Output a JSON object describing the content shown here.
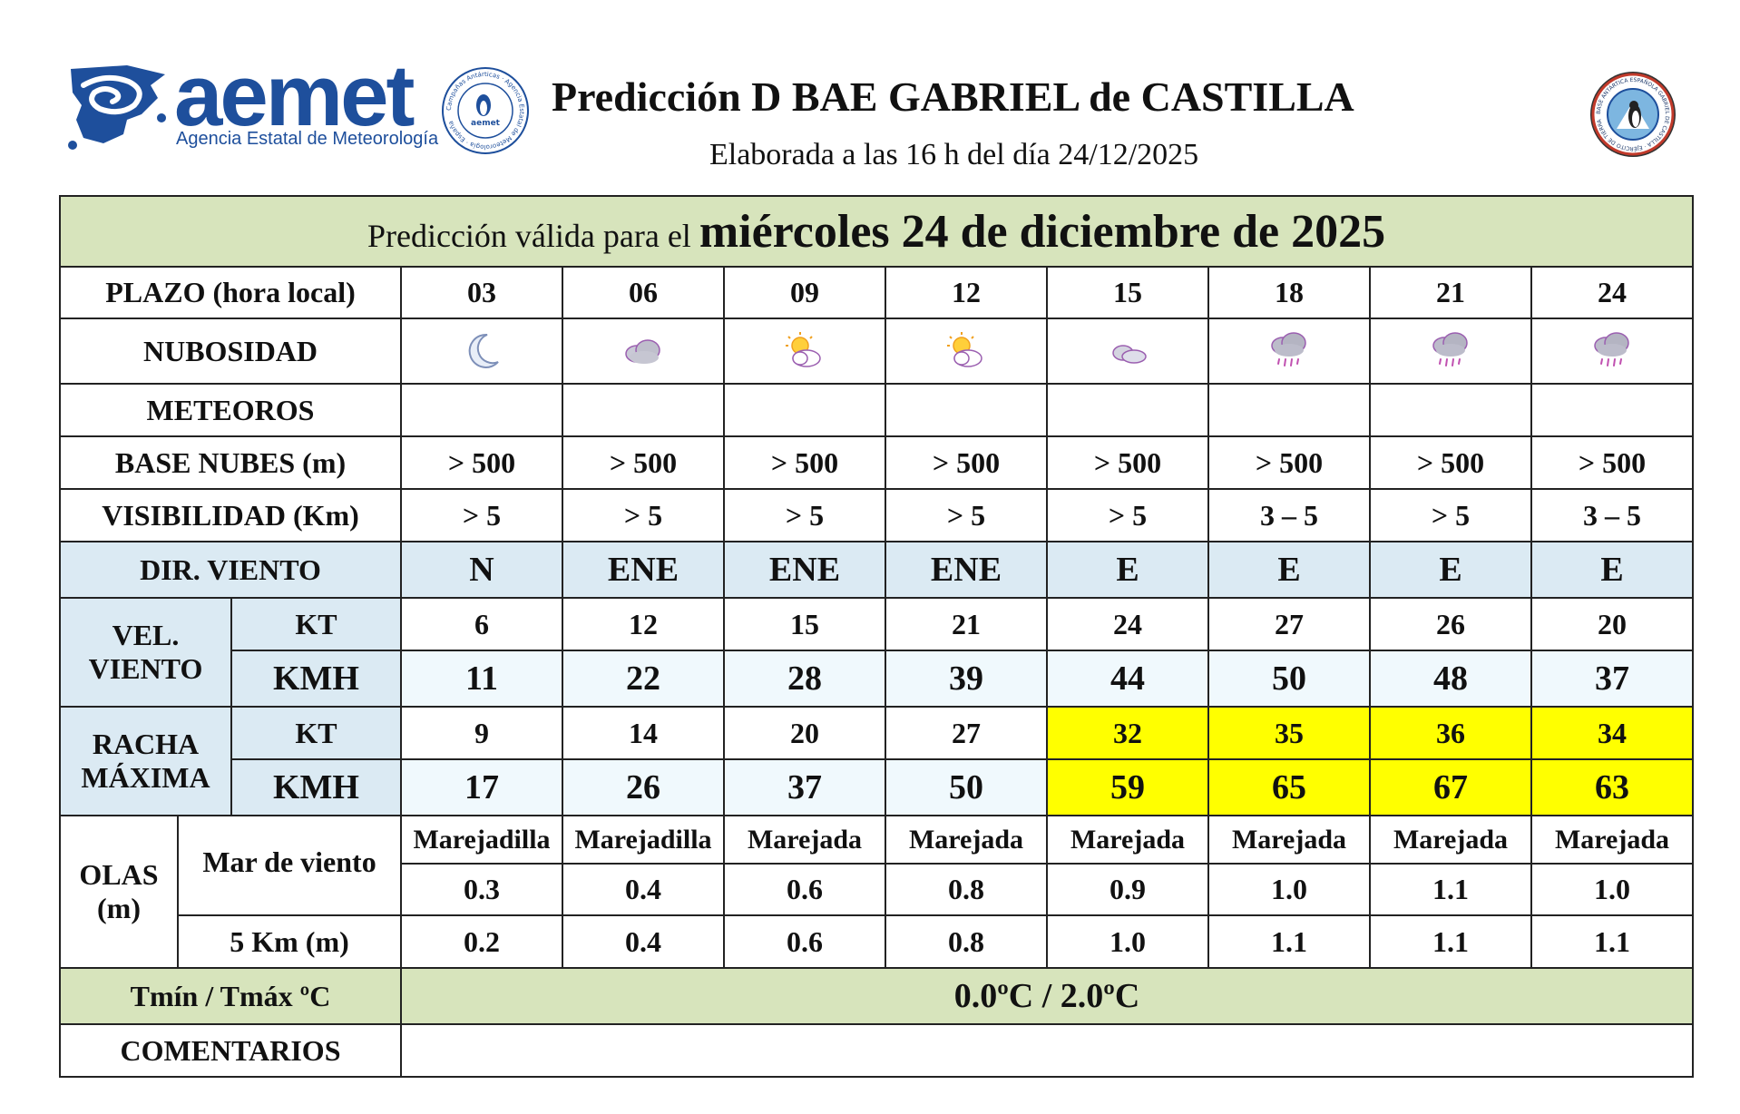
{
  "header": {
    "logo_text": "aemet",
    "logo_subtitle": "Agencia Estatal de Meteorología",
    "seal_left_text": "Campañas Antárticas · Agencia Estatal de Meteorología · España",
    "seal_left_inner": "aemet",
    "seal_right_text": "BASE ANTÁRTICA ESPAÑOLA GABRIEL DE CASTILLA · EJÉRCITO DE TIERRA",
    "title": "Predicción D BAE GABRIEL de CASTILLA",
    "subtitle": "Elaborada a las 16 h del día 24/12/2025"
  },
  "validity": {
    "prefix": "Predicción válida para el ",
    "date": "miércoles 24 de diciembre de 2025"
  },
  "rows": {
    "plazo_label": "PLAZO (hora local)",
    "hours": [
      "03",
      "06",
      "09",
      "12",
      "15",
      "18",
      "21",
      "24"
    ],
    "nubosidad_label": "NUBOSIDAD",
    "nubosidad_icons": [
      "moon-icon",
      "cloudy-icon",
      "sun-behind-cloud-icon",
      "sun-behind-cloud-icon",
      "small-cloud-icon",
      "cloud-rain-icon",
      "cloud-rain-icon",
      "cloud-rain-icon"
    ],
    "meteoros_label": "METEOROS",
    "base_nubes_label": "BASE NUBES (m)",
    "base_nubes": [
      "> 500",
      "> 500",
      "> 500",
      "> 500",
      "> 500",
      "> 500",
      "> 500",
      "> 500"
    ],
    "visibilidad_label": "VISIBILIDAD (Km)",
    "visibilidad": [
      "> 5",
      "> 5",
      "> 5",
      "> 5",
      "> 5",
      "3 – 5",
      "> 5",
      "3 – 5"
    ],
    "dir_viento_label": "DIR. VIENTO",
    "dir_viento": [
      "N",
      "ENE",
      "ENE",
      "ENE",
      "E",
      "E",
      "E",
      "E"
    ],
    "vel_viento_label_1": "VEL.",
    "vel_viento_label_2": "VIENTO",
    "kt_label": "KT",
    "kmh_label": "KMH",
    "vel_kt": [
      "6",
      "12",
      "15",
      "21",
      "24",
      "27",
      "26",
      "20"
    ],
    "vel_kmh": [
      "11",
      "22",
      "28",
      "39",
      "44",
      "50",
      "48",
      "37"
    ],
    "racha_label_1": "RACHA",
    "racha_label_2": "MÁXIMA",
    "racha_kt": [
      "9",
      "14",
      "20",
      "27",
      "32",
      "35",
      "36",
      "34"
    ],
    "racha_kmh": [
      "17",
      "26",
      "37",
      "50",
      "59",
      "65",
      "67",
      "63"
    ],
    "racha_highlight": [
      false,
      false,
      false,
      false,
      true,
      true,
      true,
      true
    ],
    "olas_label_1": "OLAS",
    "olas_label_2": "(m)",
    "mar_viento_label": "Mar de viento",
    "mar_viento_state": [
      "Marejadilla",
      "Marejadilla",
      "Marejada",
      "Marejada",
      "Marejada",
      "Marejada",
      "Marejada",
      "Marejada"
    ],
    "mar_viento_m": [
      "0.3",
      "0.4",
      "0.6",
      "0.8",
      "0.9",
      "1.0",
      "1.1",
      "1.0"
    ],
    "km5_label": "5 Km (m)",
    "km5": [
      "0.2",
      "0.4",
      "0.6",
      "0.8",
      "1.0",
      "1.1",
      "1.1",
      "1.1"
    ],
    "temp_label": "Tmín / Tmáx ºC",
    "temp_value": "0.0ºC / 2.0ºC",
    "comentarios_label": "COMENTARIOS",
    "comentarios_value": ""
  },
  "colors": {
    "green": "#d7e4bc",
    "blue": "#dbeaf3",
    "lightblue": "#f0f9fd",
    "highlight": "#ffff00",
    "brand": "#1e4f9c"
  }
}
